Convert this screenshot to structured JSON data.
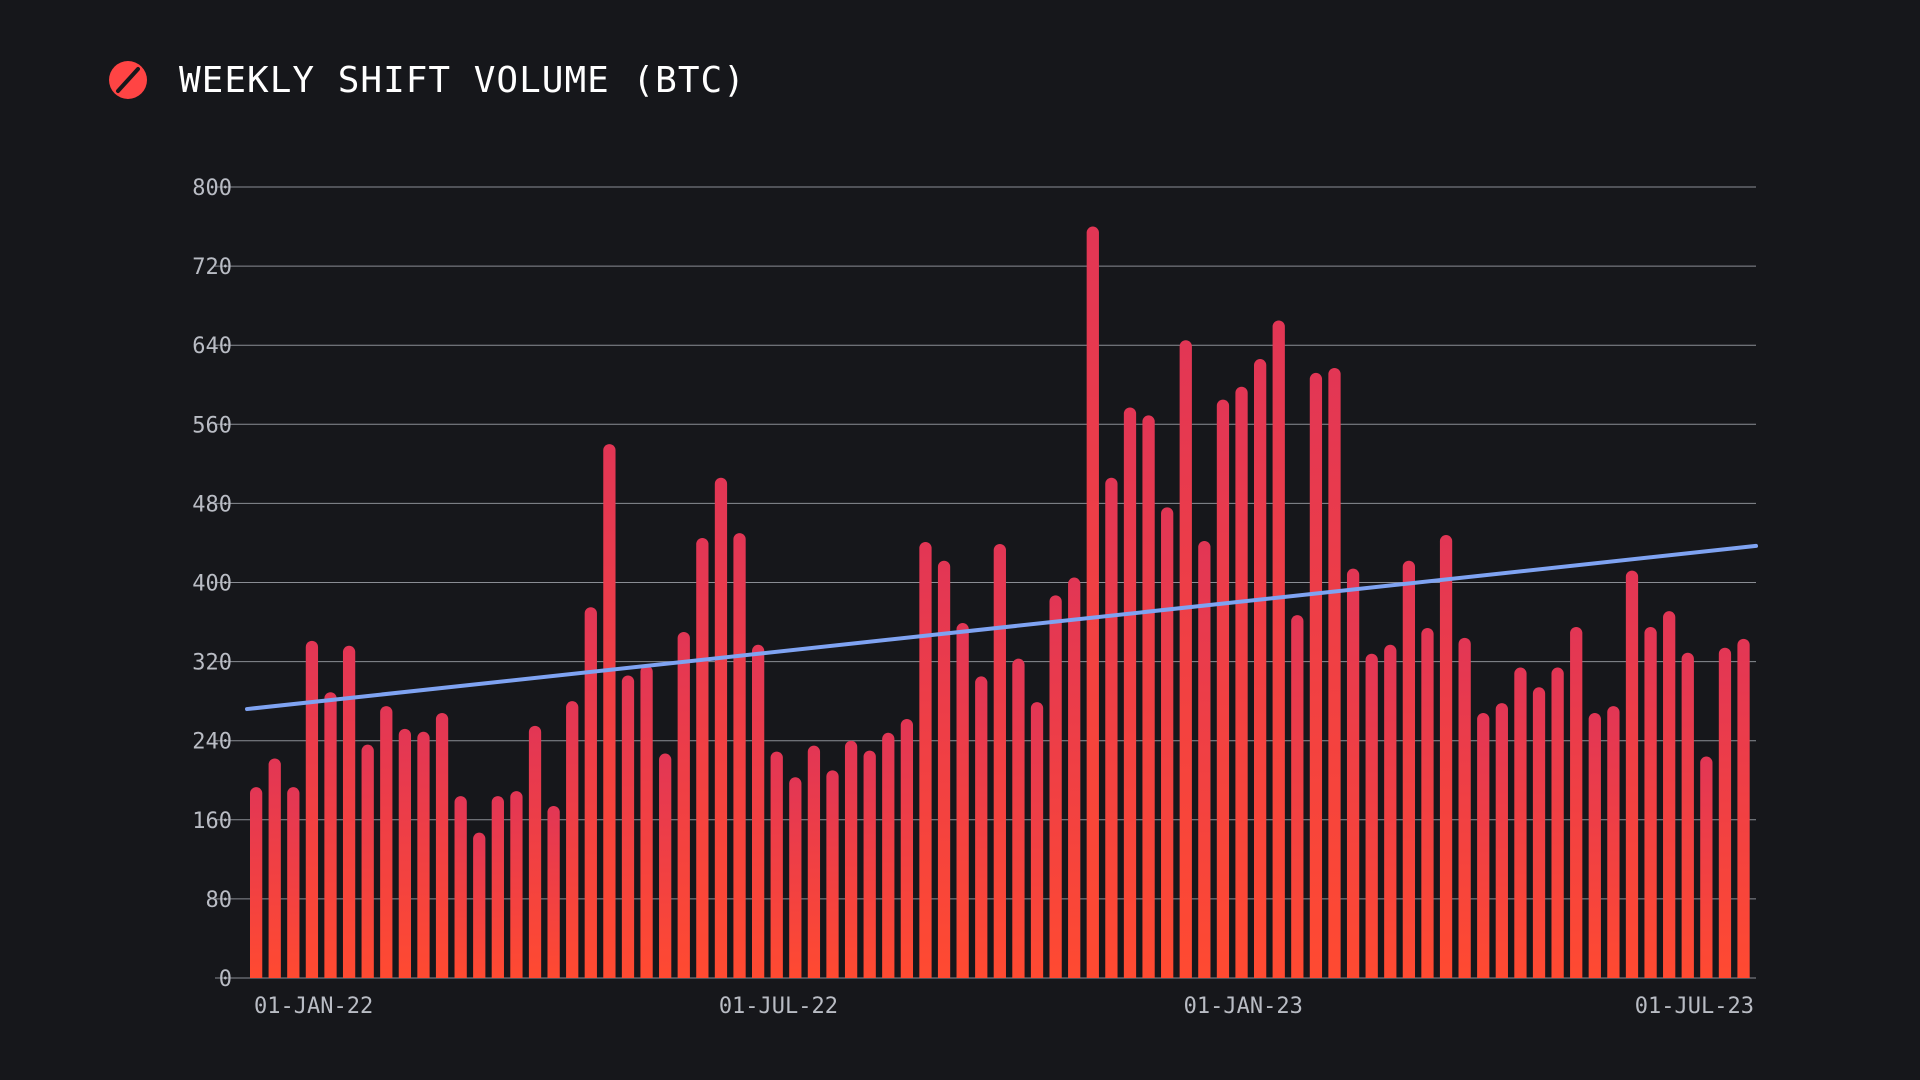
{
  "chart_data": {
    "type": "bar",
    "title": "WEEKLY SHIFT VOLUME (BTC)",
    "xlabel": "",
    "ylabel": "",
    "ylim": [
      0,
      800
    ],
    "yticks": [
      0,
      80,
      160,
      240,
      320,
      400,
      480,
      560,
      640,
      720,
      800
    ],
    "x_tick_labels": [
      "01-JAN-22",
      "01-JUL-22",
      "01-JAN-23",
      "01-JUL-23"
    ],
    "x_tick_indices": [
      0,
      25,
      50,
      75
    ],
    "grid": true,
    "series": [
      {
        "values": [
          193,
          222,
          193,
          341,
          289,
          336,
          236,
          275,
          252,
          249,
          268,
          184,
          147,
          184,
          189,
          255,
          174,
          280,
          375,
          540,
          306,
          316,
          227,
          350,
          445,
          506,
          450,
          337,
          229,
          203,
          235,
          210,
          240,
          230,
          248,
          262,
          441,
          422,
          359,
          305,
          439,
          323,
          279,
          387,
          405,
          760,
          506,
          577,
          569,
          476,
          645,
          442,
          585,
          598,
          626,
          665,
          367,
          612,
          617,
          414,
          328,
          337,
          422,
          354,
          448,
          344,
          268,
          278,
          314,
          294,
          314,
          355,
          268,
          275,
          412,
          355,
          371,
          329,
          224,
          334,
          343
        ],
        "color_top": "#e23655",
        "color_bottom": "#ff4a31"
      }
    ],
    "trendline": {
      "start_value": 272,
      "end_value": 437,
      "color": "#7fa3f2"
    },
    "logo": {
      "icon": "slash-circle-icon",
      "color": "#ff4444"
    }
  }
}
